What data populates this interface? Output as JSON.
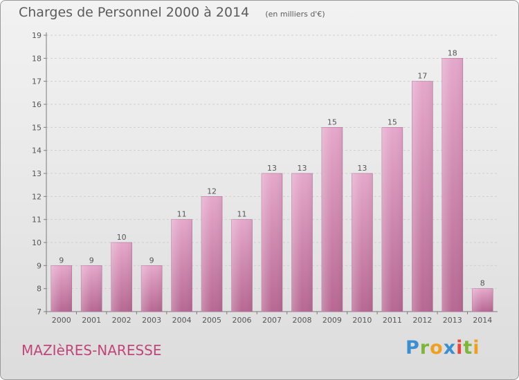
{
  "chart_data": {
    "type": "bar",
    "title": "Charges de Personnel 2000 à 2014",
    "subtitle": "(en milliers d'€)",
    "categories": [
      "2000",
      "2001",
      "2002",
      "2003",
      "2004",
      "2005",
      "2006",
      "2007",
      "2008",
      "2009",
      "2010",
      "2011",
      "2012",
      "2013",
      "2014"
    ],
    "values": [
      9,
      9,
      10,
      9,
      11,
      12,
      11,
      13,
      13,
      15,
      13,
      15,
      17,
      18,
      8
    ],
    "ylim": [
      7,
      19
    ],
    "yticks": [
      7,
      8,
      9,
      10,
      11,
      12,
      13,
      14,
      15,
      16,
      17,
      18,
      19
    ],
    "grid": true,
    "bar_color": "#d98bb5"
  },
  "footer": {
    "commune": "MAZIèRES-NARESSE",
    "logo": {
      "p": "P",
      "r": "r",
      "o": "o",
      "x": "x",
      "i1": "i",
      "t": "t",
      "i2": "i"
    }
  }
}
